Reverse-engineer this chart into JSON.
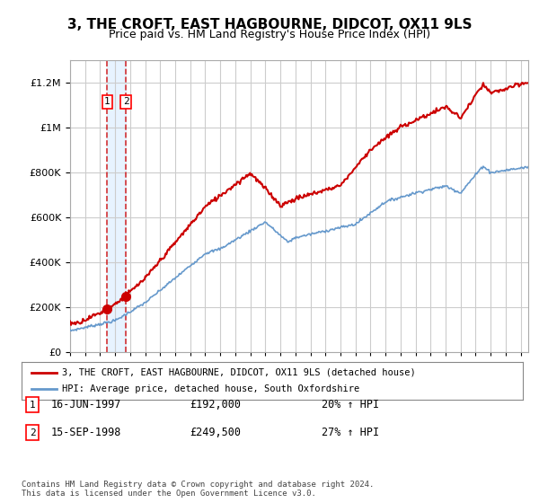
{
  "title": "3, THE CROFT, EAST HAGBOURNE, DIDCOT, OX11 9LS",
  "subtitle": "Price paid vs. HM Land Registry's House Price Index (HPI)",
  "sale1_date": "16-JUN-1997",
  "sale1_price": 192000,
  "sale1_label": "1",
  "sale1_hpi": "20% ↑ HPI",
  "sale2_date": "15-SEP-1998",
  "sale2_price": 249500,
  "sale2_label": "2",
  "sale2_hpi": "27% ↑ HPI",
  "legend_line1": "3, THE CROFT, EAST HAGBOURNE, DIDCOT, OX11 9LS (detached house)",
  "legend_line2": "HPI: Average price, detached house, South Oxfordshire",
  "footnote": "Contains HM Land Registry data © Crown copyright and database right 2024.\nThis data is licensed under the Open Government Licence v3.0.",
  "hpi_color": "#6699cc",
  "price_color": "#cc0000",
  "dot_color": "#cc0000",
  "vline_color": "#cc0000",
  "shade_color": "#ddeeff",
  "grid_color": "#cccccc",
  "bg_color": "#ffffff",
  "ylim": [
    0,
    1300000
  ],
  "yticks": [
    0,
    200000,
    400000,
    600000,
    800000,
    1000000,
    1200000
  ],
  "ytick_labels": [
    "£0",
    "£200K",
    "£400K",
    "£600K",
    "£800K",
    "£1M",
    "£1.2M"
  ],
  "xstart": 1995.0,
  "xend": 2025.5,
  "sale1_x": 1997.46,
  "sale2_x": 1998.71
}
